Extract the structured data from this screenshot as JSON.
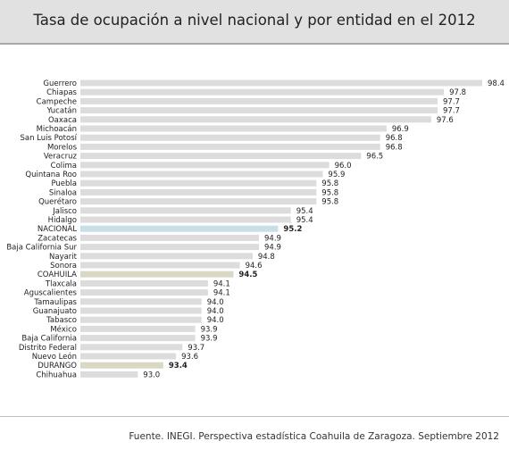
{
  "header": {
    "title": "Tasa de ocupación a nivel nacional y por entidad en el 2012"
  },
  "footer": {
    "source": "Fuente. INEGI. Perspectiva estadística Coahuila de Zaragoza. Septiembre 2012"
  },
  "colors": {
    "bar_default": "#dcdcdc",
    "bar_nacional": "#c9dfe6",
    "bar_highlight": "#d8d8c4",
    "text": "#222222"
  },
  "chart_data": {
    "type": "bar",
    "orientation": "horizontal",
    "title": "Tasa de ocupación a nivel nacional y por entidad en el 2012",
    "categories": [
      "Guerrero",
      "Chiapas",
      "Campeche",
      "Yucatán",
      "Oaxaca",
      "Michoacán",
      "San Luis Potosí",
      "Morelos",
      "Veracruz",
      "Colima",
      "Quintana Roo",
      "Puebla",
      "Sinaloa",
      "Querétaro",
      "Jalisco",
      "Hidalgo",
      "NACIONAL",
      "Zacatecas",
      "Baja California Sur",
      "Nayarit",
      "Sonora",
      "COAHUILA",
      "Tlaxcala",
      "Aguscalientes",
      "Tamaulipas",
      "Guanajuato",
      "Tabasco",
      "México",
      "Baja California",
      "Distrito Federal",
      "Nuevo León",
      "DURANGO",
      "Chihuahua"
    ],
    "values": [
      98.4,
      97.8,
      97.7,
      97.7,
      97.6,
      96.9,
      96.8,
      96.8,
      96.5,
      96.0,
      95.9,
      95.8,
      95.8,
      95.8,
      95.4,
      95.4,
      95.2,
      94.9,
      94.9,
      94.8,
      94.6,
      94.5,
      94.1,
      94.1,
      94.0,
      94.0,
      94.0,
      93.9,
      93.9,
      93.7,
      93.6,
      93.4,
      93.0
    ],
    "value_labels": [
      "98.4",
      "97.8",
      "97.7",
      "97.7",
      "97.6",
      "96.9",
      "96.8",
      "96.8",
      "96.5",
      "96.0",
      "95.9",
      "95.8",
      "95.8",
      "95.8",
      "95.4",
      "95.4",
      "95.2",
      "94.9",
      "94.9",
      "94.8",
      "94.6",
      "94.5",
      "94.1",
      "94.1",
      "94.0",
      "94.0",
      "94.0",
      "93.9",
      "93.9",
      "93.7",
      "93.6",
      "93.4",
      "93.0"
    ],
    "highlight": {
      "NACIONAL": "nacional",
      "COAHUILA": "highlight",
      "DURANGO": "highlight"
    },
    "bold_value_categories": [
      "NACIONAL",
      "COAHUILA",
      "DURANGO"
    ],
    "xlim": [
      92.1,
      98.4
    ],
    "grid": false,
    "legend": "none"
  }
}
